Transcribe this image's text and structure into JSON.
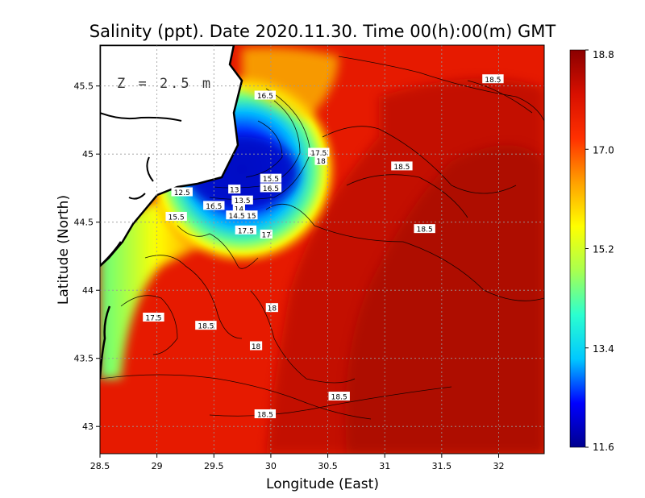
{
  "chart_data": {
    "type": "heatmap",
    "title": "Salinity (ppt). Date 2020.11.30. Time 00(h):00(m) GMT",
    "xlabel": "Longitude (East)",
    "ylabel": "Latitude (North)",
    "xlim": [
      28.5,
      32.4
    ],
    "ylim": [
      42.8,
      45.8
    ],
    "xticks": [
      "28.5",
      "29",
      "29.5",
      "30",
      "30.5",
      "31",
      "31.5",
      "32"
    ],
    "yticks": [
      "43",
      "43.5",
      "44",
      "44.5",
      "45",
      "45.5"
    ],
    "grid": true,
    "depth_label": "Z = 2.5 m",
    "colorbar": {
      "min": 11.6,
      "max": 18.8,
      "ticks": [
        "11.6",
        "13.4",
        "15.2",
        "17.0",
        "18.8"
      ],
      "colors": [
        "#00008f",
        "#0000ff",
        "#00c8ff",
        "#2bffd0",
        "#a8ff50",
        "#ffff00",
        "#ffa000",
        "#ff3000",
        "#d81000",
        "#8b0000"
      ]
    },
    "contour_labels": [
      {
        "text": "16.5",
        "x": 29.95,
        "y": 45.43
      },
      {
        "text": "18.5",
        "x": 31.95,
        "y": 45.55
      },
      {
        "text": "17.5",
        "x": 30.42,
        "y": 45.01
      },
      {
        "text": "18",
        "x": 30.44,
        "y": 44.95
      },
      {
        "text": "18.5",
        "x": 31.15,
        "y": 44.91
      },
      {
        "text": "15.5",
        "x": 30.0,
        "y": 44.82
      },
      {
        "text": "16.5",
        "x": 30.0,
        "y": 44.75
      },
      {
        "text": "12.5",
        "x": 29.22,
        "y": 44.72
      },
      {
        "text": "13",
        "x": 29.68,
        "y": 44.74
      },
      {
        "text": "13.5",
        "x": 29.75,
        "y": 44.66
      },
      {
        "text": "16.5",
        "x": 29.5,
        "y": 44.62
      },
      {
        "text": "14",
        "x": 29.72,
        "y": 44.6
      },
      {
        "text": "15.5",
        "x": 29.17,
        "y": 44.54
      },
      {
        "text": "14.5",
        "x": 29.7,
        "y": 44.55
      },
      {
        "text": "15",
        "x": 29.83,
        "y": 44.55
      },
      {
        "text": "18.5",
        "x": 31.35,
        "y": 44.45
      },
      {
        "text": "17.5",
        "x": 29.78,
        "y": 44.44
      },
      {
        "text": "17",
        "x": 29.96,
        "y": 44.41
      },
      {
        "text": "18",
        "x": 30.01,
        "y": 43.87
      },
      {
        "text": "17.5",
        "x": 28.97,
        "y": 43.8
      },
      {
        "text": "18.5",
        "x": 29.43,
        "y": 43.74
      },
      {
        "text": "18",
        "x": 29.87,
        "y": 43.59
      },
      {
        "text": "18.5",
        "x": 30.6,
        "y": 43.22
      },
      {
        "text": "18.5",
        "x": 29.95,
        "y": 43.09
      }
    ]
  }
}
